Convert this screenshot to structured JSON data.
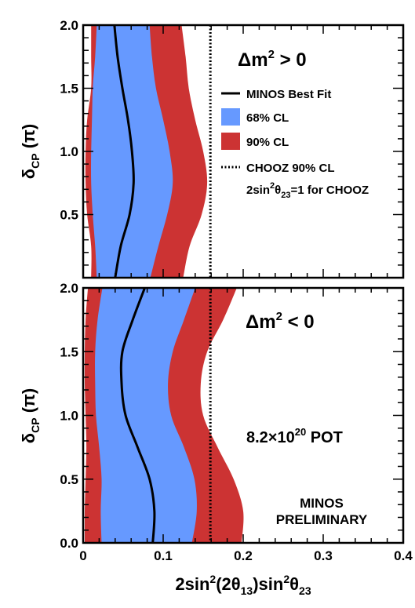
{
  "chart_data": [
    {
      "type": "area",
      "title": "Δm² > 0",
      "xlabel": "2sin²(2θ13)sin²θ23",
      "ylabel": "δCP (π)",
      "xlim": [
        0,
        0.4
      ],
      "ylim": [
        0,
        2.0
      ],
      "x_ticks": [
        "0",
        "0.1",
        "0.2",
        "0.3",
        "0.4"
      ],
      "y_ticks": [
        "0.5",
        "1.0",
        "1.5",
        "2.0"
      ],
      "delta_cp": [
        0,
        0.25,
        0.5,
        0.75,
        1.0,
        1.25,
        1.5,
        1.75,
        2.0
      ],
      "series": [
        {
          "name": "90% CL",
          "color": "#cc3333",
          "low": [
            0.01,
            0.01,
            0.005,
            0.003,
            0.003,
            0.005,
            0.01,
            0.01,
            0.01
          ],
          "high": [
            0.125,
            0.133,
            0.148,
            0.155,
            0.15,
            0.14,
            0.132,
            0.128,
            0.123
          ]
        },
        {
          "name": "68% CL",
          "color": "#6699ff",
          "low": [
            0.017,
            0.015,
            0.012,
            0.01,
            0.01,
            0.011,
            0.012,
            0.015,
            0.017
          ],
          "high": [
            0.084,
            0.094,
            0.105,
            0.112,
            0.108,
            0.1,
            0.091,
            0.086,
            0.083
          ]
        },
        {
          "name": "MINOS Best Fit",
          "color": "#000000",
          "values": [
            0.04,
            0.047,
            0.058,
            0.063,
            0.061,
            0.056,
            0.049,
            0.043,
            0.039
          ]
        }
      ],
      "chooz_limit": 0.159,
      "legend": [
        {
          "label": "MINOS Best Fit",
          "kind": "line",
          "color": "#000000"
        },
        {
          "label": "68% CL",
          "kind": "box",
          "color": "#6699ff"
        },
        {
          "label": "90% CL",
          "kind": "box",
          "color": "#cc3333"
        },
        {
          "label": "CHOOZ 90% CL",
          "kind": "dotted",
          "color": "#000000"
        }
      ],
      "legend_note": "2sin²θ23=1 for CHOOZ"
    },
    {
      "type": "area",
      "title": "Δm² < 0",
      "xlabel": "2sin²(2θ13)sin²θ23",
      "ylabel": "δCP (π)",
      "xlim": [
        0,
        0.4
      ],
      "ylim": [
        0,
        2.0
      ],
      "x_ticks": [
        "0",
        "0.1",
        "0.2",
        "0.3",
        "0.4"
      ],
      "y_ticks": [
        "0.0",
        "0.5",
        "1.0",
        "1.5",
        "2.0"
      ],
      "delta_cp": [
        0,
        0.25,
        0.5,
        0.75,
        1.0,
        1.25,
        1.5,
        1.75,
        2.0
      ],
      "series": [
        {
          "name": "90% CL",
          "color": "#cc3333",
          "low": [
            0.002,
            0.002,
            0.003,
            0.004,
            0.003,
            0.002,
            0.002,
            0.003,
            0.006
          ],
          "high": [
            0.198,
            0.2,
            0.188,
            0.168,
            0.15,
            0.147,
            0.155,
            0.175,
            0.192
          ]
        },
        {
          "name": "68% CL",
          "color": "#6699ff",
          "low": [
            0.023,
            0.022,
            0.023,
            0.02,
            0.016,
            0.015,
            0.015,
            0.018,
            0.024
          ],
          "high": [
            0.136,
            0.142,
            0.139,
            0.126,
            0.11,
            0.106,
            0.112,
            0.126,
            0.14
          ]
        },
        {
          "name": "MINOS Best Fit",
          "color": "#000000",
          "values": [
            0.087,
            0.089,
            0.083,
            0.068,
            0.053,
            0.048,
            0.049,
            0.062,
            0.077
          ]
        }
      ],
      "chooz_limit": 0.159,
      "annotations": [
        "8.2×10²⁰ POT",
        "MINOS PRELIMINARY"
      ]
    }
  ],
  "texts": {
    "top_title_main": "Δm",
    "top_title_sup": "2",
    "top_title_rel": " > 0",
    "bottom_title_main": "Δm",
    "bottom_title_sup": "2",
    "bottom_title_rel": " < 0",
    "legend_best_fit": "MINOS Best Fit",
    "legend_68": "68% CL",
    "legend_90": "90% CL",
    "legend_chooz": "CHOOZ 90% CL",
    "legend_note_a": "2sin",
    "legend_note_sup": "2",
    "legend_note_theta": "θ",
    "legend_note_sub": "23",
    "legend_note_b": "=1 for CHOOZ",
    "pot_a": "8.2×10",
    "pot_sup": "20",
    "pot_b": " POT",
    "prelim_line1": "MINOS",
    "prelim_line2": "PRELIMINARY",
    "ylabel_delta": "δ",
    "ylabel_sub": "CP",
    "ylabel_unit": " (π)",
    "xlabel_a": "2sin",
    "xlabel_sup1": "2",
    "xlabel_b": "(2θ",
    "xlabel_sub1": "13",
    "xlabel_c": ")sin",
    "xlabel_sup2": "2",
    "xlabel_d": "θ",
    "xlabel_sub2": "23"
  }
}
